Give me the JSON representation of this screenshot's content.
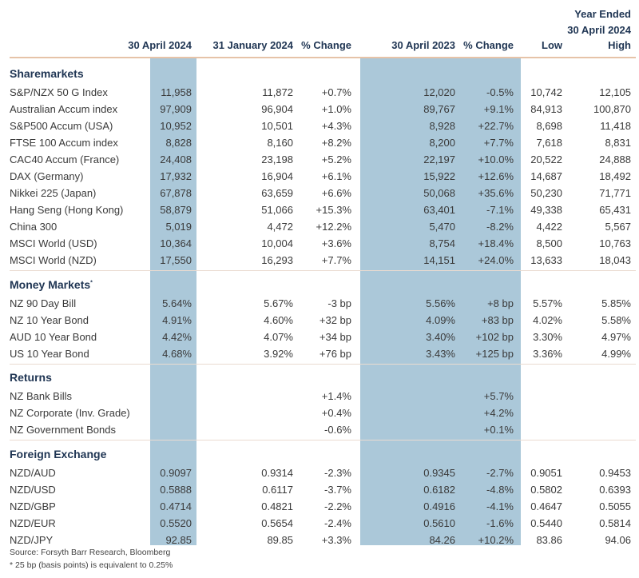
{
  "header": {
    "year_ended": "Year Ended",
    "year_ended_date": "30 April 2024",
    "columns": [
      "30 April 2024",
      "31 January 2024",
      "% Change",
      "30 April 2023",
      "% Change",
      "Low",
      "High"
    ]
  },
  "colors": {
    "highlight": "#abc8d9",
    "heading": "#1f3553"
  },
  "sections": [
    {
      "title": "Sharemarkets",
      "marker": "",
      "rows": [
        [
          "S&P/NZX 50 G Index",
          "11,958",
          "11,872",
          "+0.7%",
          "12,020",
          "-0.5%",
          "10,742",
          "12,105"
        ],
        [
          "Australian Accum index",
          "97,909",
          "96,904",
          "+1.0%",
          "89,767",
          "+9.1%",
          "84,913",
          "100,870"
        ],
        [
          "S&P500 Accum (USA)",
          "10,952",
          "10,501",
          "+4.3%",
          "8,928",
          "+22.7%",
          "8,698",
          "11,418"
        ],
        [
          "FTSE 100 Accum index",
          "8,828",
          "8,160",
          "+8.2%",
          "8,200",
          "+7.7%",
          "7,618",
          "8,831"
        ],
        [
          "CAC40 Accum (France)",
          "24,408",
          "23,198",
          "+5.2%",
          "22,197",
          "+10.0%",
          "20,522",
          "24,888"
        ],
        [
          "DAX (Germany)",
          "17,932",
          "16,904",
          "+6.1%",
          "15,922",
          "+12.6%",
          "14,687",
          "18,492"
        ],
        [
          "Nikkei 225 (Japan)",
          "67,878",
          "63,659",
          "+6.6%",
          "50,068",
          "+35.6%",
          "50,230",
          "71,771"
        ],
        [
          "Hang Seng (Hong Kong)",
          "58,879",
          "51,066",
          "+15.3%",
          "63,401",
          "-7.1%",
          "49,338",
          "65,431"
        ],
        [
          "China 300",
          "5,019",
          "4,472",
          "+12.2%",
          "5,470",
          "-8.2%",
          "4,422",
          "5,567"
        ],
        [
          "MSCI World (USD)",
          "10,364",
          "10,004",
          "+3.6%",
          "8,754",
          "+18.4%",
          "8,500",
          "10,763"
        ],
        [
          "MSCI World (NZD)",
          "17,550",
          "16,293",
          "+7.7%",
          "14,151",
          "+24.0%",
          "13,633",
          "18,043"
        ]
      ]
    },
    {
      "title": "Money Markets",
      "marker": "*",
      "rows": [
        [
          "NZ 90 Day Bill",
          "5.64%",
          "5.67%",
          "-3 bp",
          "5.56%",
          "+8 bp",
          "5.57%",
          "5.85%"
        ],
        [
          "NZ 10 Year Bond",
          "4.91%",
          "4.60%",
          "+32 bp",
          "4.09%",
          "+83 bp",
          "4.02%",
          "5.58%"
        ],
        [
          "AUD 10 Year Bond",
          "4.42%",
          "4.07%",
          "+34 bp",
          "3.40%",
          "+102 bp",
          "3.30%",
          "4.97%"
        ],
        [
          "US 10 Year Bond",
          "4.68%",
          "3.92%",
          "+76 bp",
          "3.43%",
          "+125 bp",
          "3.36%",
          "4.99%"
        ]
      ]
    },
    {
      "title": "Returns",
      "marker": "",
      "rows": [
        [
          "NZ Bank Bills",
          "",
          "",
          "+1.4%",
          "",
          "+5.7%",
          "",
          ""
        ],
        [
          "NZ Corporate (Inv. Grade)",
          "",
          "",
          "+0.4%",
          "",
          "+4.2%",
          "",
          ""
        ],
        [
          "NZ Government Bonds",
          "",
          "",
          "-0.6%",
          "",
          "+0.1%",
          "",
          ""
        ]
      ]
    },
    {
      "title": "Foreign Exchange",
      "marker": "",
      "rows": [
        [
          "NZD/AUD",
          "0.9097",
          "0.9314",
          "-2.3%",
          "0.9345",
          "-2.7%",
          "0.9051",
          "0.9453"
        ],
        [
          "NZD/USD",
          "0.5888",
          "0.6117",
          "-3.7%",
          "0.6182",
          "-4.8%",
          "0.5802",
          "0.6393"
        ],
        [
          "NZD/GBP",
          "0.4714",
          "0.4821",
          "-2.2%",
          "0.4916",
          "-4.1%",
          "0.4647",
          "0.5055"
        ],
        [
          "NZD/EUR",
          "0.5520",
          "0.5654",
          "-2.4%",
          "0.5610",
          "-1.6%",
          "0.5440",
          "0.5814"
        ],
        [
          "NZD/JPY",
          "92.85",
          "89.85",
          "+3.3%",
          "84.26",
          "+10.2%",
          "83.86",
          "94.06"
        ]
      ]
    }
  ],
  "footer": {
    "source": "Source: Forsyth Barr Research, Bloomberg",
    "footnote": "* 25 bp (basis points) is equivalent to 0.25%"
  }
}
